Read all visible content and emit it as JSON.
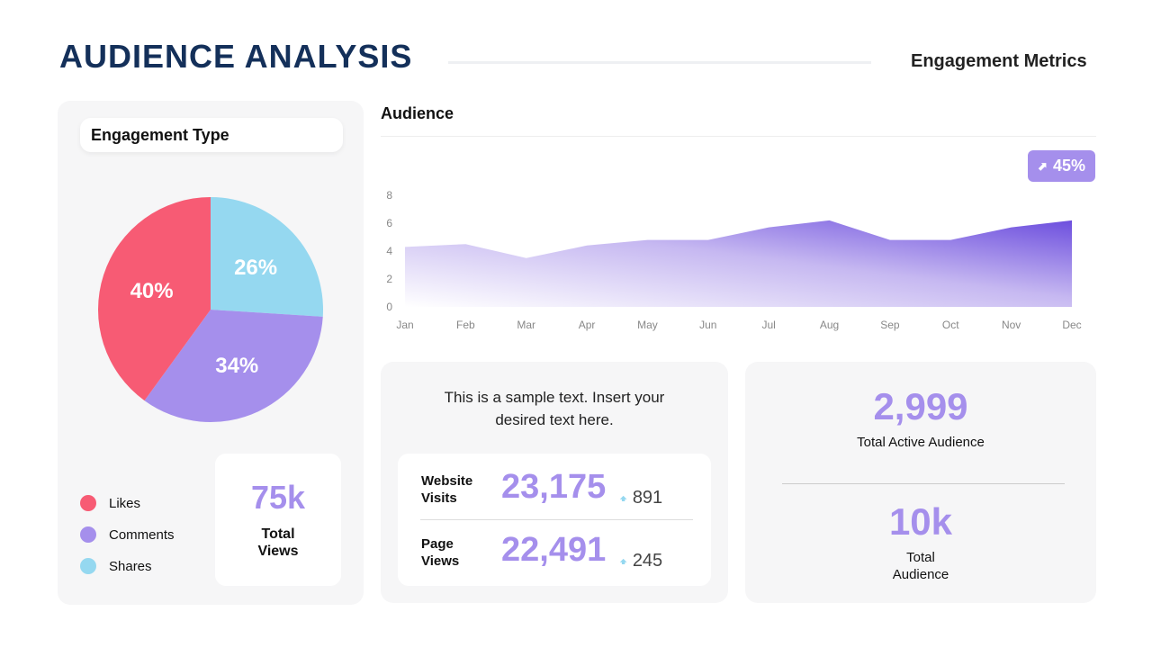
{
  "header": {
    "title": "AUDIENCE ANALYSIS",
    "subtitle": "Engagement Metrics"
  },
  "engagement": {
    "title": "Engagement Type",
    "total_value": "75k",
    "total_label": "Total Views"
  },
  "audience": {
    "title": "Audience",
    "badge": "45%",
    "badge_icon": "arrow-up-right-icon"
  },
  "colors": {
    "likes": "#f75b74",
    "comments": "#a58fec",
    "shares": "#95d8f0",
    "accent": "#a58fec",
    "title": "#14305a"
  },
  "stats": {
    "sample_text": "This is a sample text. Insert your desired text here.",
    "rows": [
      {
        "label": "Website Visits",
        "value": "23,175",
        "delta": "891"
      },
      {
        "label": "Page Views",
        "value": "22,491",
        "delta": "245"
      }
    ]
  },
  "summary": {
    "active_value": "2,999",
    "active_label": "Total Active Audience",
    "total_value": "10k",
    "total_label": "Total Audience"
  },
  "chart_data": [
    {
      "type": "pie",
      "series": [
        {
          "name": "Likes",
          "value": 40,
          "label": "40%"
        },
        {
          "name": "Comments",
          "value": 34,
          "label": "34%"
        },
        {
          "name": "Shares",
          "value": 26,
          "label": "26%"
        }
      ],
      "legend": "bottom-left"
    },
    {
      "type": "area",
      "title": "Audience",
      "categories": [
        "Jan",
        "Feb",
        "Mar",
        "Apr",
        "May",
        "Jun",
        "Jul",
        "Aug",
        "Sep",
        "Oct",
        "Nov",
        "Dec"
      ],
      "values": [
        4.3,
        4.5,
        3.5,
        4.4,
        4.8,
        4.8,
        5.7,
        6.2,
        4.8,
        4.8,
        5.7,
        6.2
      ],
      "ylim": [
        0,
        8
      ],
      "yticks": [
        "0",
        "2",
        "4",
        "6",
        "8"
      ],
      "grid": false
    }
  ]
}
